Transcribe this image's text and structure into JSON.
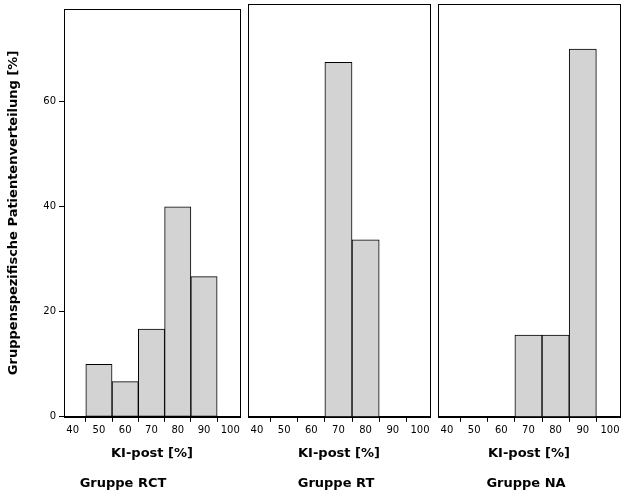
{
  "chart_data": [
    {
      "type": "histogram",
      "title": "Gruppe RCT",
      "xlabel": "KI-post [%]",
      "ylabel": "Gruppenspezifische Patientenverteilung [%]",
      "bins": [
        45,
        55,
        65,
        75,
        85,
        95
      ],
      "values": [
        10,
        6.7,
        16.7,
        40,
        26.7
      ],
      "color": "#d3d3d3",
      "xlim": [
        36.7,
        103.7
      ],
      "xticks": [
        40,
        50,
        60,
        70,
        80,
        90,
        100
      ],
      "ylim": [
        0,
        77.7
      ],
      "yticks": [
        0,
        20,
        40,
        60
      ],
      "grid": false
    },
    {
      "type": "histogram",
      "title": "Gruppe RT",
      "xlabel": "KI-post [%]",
      "bins": [
        65,
        75,
        85
      ],
      "values": [
        66.7,
        33.3
      ],
      "color": "#d3d3d3",
      "xlim": [
        36.7,
        103.7
      ],
      "xticks": [
        40,
        50,
        60,
        70,
        80,
        90,
        100
      ],
      "ylim": [
        0,
        77.7
      ],
      "grid": false,
      "tick_labels": "x"
    },
    {
      "type": "histogram",
      "title": "Gruppe NA",
      "xlabel": "KI-post [%]",
      "bins": [
        65,
        75,
        85,
        95
      ],
      "values": [
        15.4,
        15.4,
        69.2
      ],
      "color": "#d3d3d3",
      "xlim": [
        36.7,
        103.7
      ],
      "xticks": [
        40,
        50,
        60,
        70,
        80,
        90,
        100
      ],
      "ylim": [
        0,
        77.7
      ],
      "grid": false,
      "tick_labels": "x"
    }
  ]
}
